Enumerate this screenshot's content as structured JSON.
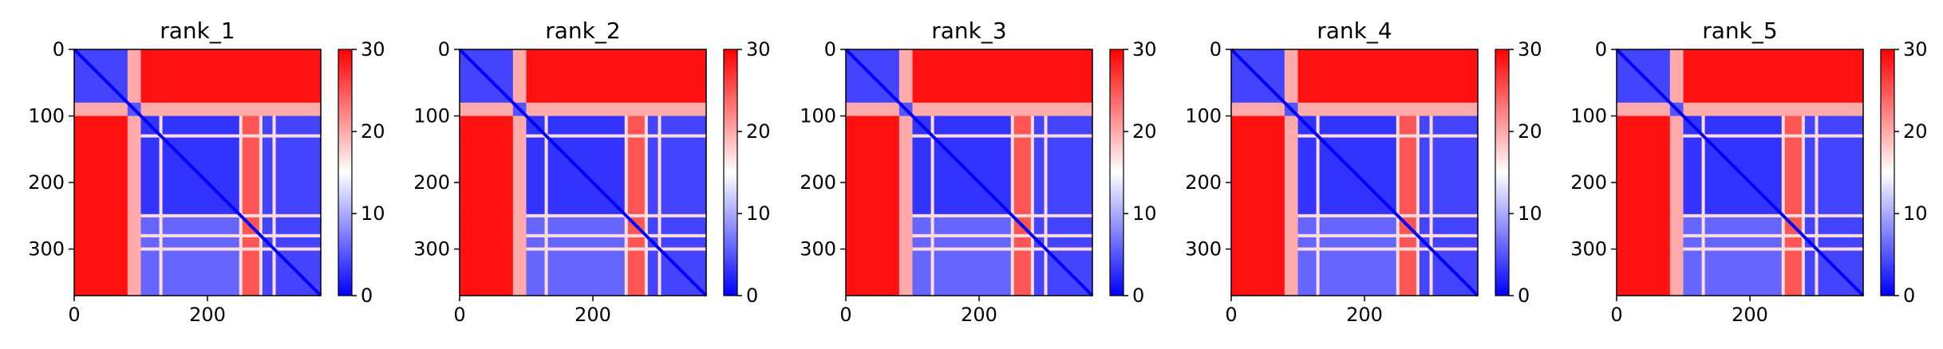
{
  "chart_data": [
    {
      "type": "heatmap",
      "title": "rank_1",
      "xlabel": "",
      "ylabel": "",
      "matrix_size": 370,
      "xlim": [
        0,
        370
      ],
      "ylim": [
        370,
        0
      ],
      "x_ticks": [
        0,
        200
      ],
      "y_ticks": [
        0,
        100,
        200,
        300
      ],
      "colorbar": {
        "cmap": "bwr",
        "range": [
          0,
          30
        ],
        "ticks": [
          0,
          10,
          20,
          30
        ]
      },
      "segments": [
        [
          0,
          20
        ],
        [
          20,
          80
        ],
        [
          80,
          100
        ],
        [
          100,
          130
        ],
        [
          130,
          250
        ],
        [
          250,
          280
        ],
        [
          280,
          300
        ],
        [
          300,
          370
        ]
      ],
      "blocks": [
        {
          "rows": [
            0,
            80
          ],
          "cols": [
            0,
            80
          ],
          "value": 4
        },
        {
          "rows": [
            0,
            80
          ],
          "cols": [
            80,
            370
          ],
          "value": 29
        },
        {
          "rows": [
            100,
            250
          ],
          "cols": [
            100,
            250
          ],
          "value": 3
        },
        {
          "rows": [
            100,
            250
          ],
          "cols": [
            250,
            370
          ],
          "value": 6
        },
        {
          "rows": [
            250,
            280
          ],
          "cols": [
            100,
            370
          ],
          "value": 25
        },
        {
          "rows": [
            280,
            370
          ],
          "cols": [
            100,
            370
          ],
          "value": 4
        },
        {
          "rows": [
            80,
            370
          ],
          "cols": [
            0,
            80
          ],
          "value": 29
        }
      ],
      "diagonal_value": 0
    },
    {
      "type": "heatmap",
      "title": "rank_2",
      "xlabel": "",
      "ylabel": "",
      "matrix_size": 370,
      "xlim": [
        0,
        370
      ],
      "ylim": [
        370,
        0
      ],
      "x_ticks": [
        0,
        200
      ],
      "y_ticks": [
        0,
        100,
        200,
        300
      ],
      "colorbar": {
        "cmap": "bwr",
        "range": [
          0,
          30
        ],
        "ticks": [
          0,
          10,
          20,
          30
        ]
      },
      "segments": [
        [
          0,
          20
        ],
        [
          20,
          80
        ],
        [
          80,
          100
        ],
        [
          100,
          130
        ],
        [
          130,
          250
        ],
        [
          250,
          280
        ],
        [
          280,
          300
        ],
        [
          300,
          370
        ]
      ],
      "blocks": [
        {
          "rows": [
            0,
            80
          ],
          "cols": [
            0,
            80
          ],
          "value": 4
        },
        {
          "rows": [
            0,
            80
          ],
          "cols": [
            80,
            370
          ],
          "value": 29
        },
        {
          "rows": [
            100,
            250
          ],
          "cols": [
            100,
            250
          ],
          "value": 3
        },
        {
          "rows": [
            100,
            250
          ],
          "cols": [
            250,
            370
          ],
          "value": 6
        },
        {
          "rows": [
            250,
            280
          ],
          "cols": [
            100,
            370
          ],
          "value": 25
        },
        {
          "rows": [
            280,
            370
          ],
          "cols": [
            100,
            370
          ],
          "value": 4
        },
        {
          "rows": [
            80,
            370
          ],
          "cols": [
            0,
            80
          ],
          "value": 29
        }
      ],
      "diagonal_value": 0
    },
    {
      "type": "heatmap",
      "title": "rank_3",
      "xlabel": "",
      "ylabel": "",
      "matrix_size": 370,
      "xlim": [
        0,
        370
      ],
      "ylim": [
        370,
        0
      ],
      "x_ticks": [
        0,
        200
      ],
      "y_ticks": [
        0,
        100,
        200,
        300
      ],
      "colorbar": {
        "cmap": "bwr",
        "range": [
          0,
          30
        ],
        "ticks": [
          0,
          10,
          20,
          30
        ]
      },
      "segments": [
        [
          0,
          20
        ],
        [
          20,
          80
        ],
        [
          80,
          100
        ],
        [
          100,
          130
        ],
        [
          130,
          250
        ],
        [
          250,
          280
        ],
        [
          280,
          300
        ],
        [
          300,
          370
        ]
      ],
      "blocks": [
        {
          "rows": [
            0,
            80
          ],
          "cols": [
            0,
            80
          ],
          "value": 4
        },
        {
          "rows": [
            0,
            80
          ],
          "cols": [
            80,
            370
          ],
          "value": 29
        },
        {
          "rows": [
            100,
            250
          ],
          "cols": [
            100,
            250
          ],
          "value": 3
        },
        {
          "rows": [
            100,
            250
          ],
          "cols": [
            250,
            370
          ],
          "value": 6
        },
        {
          "rows": [
            250,
            280
          ],
          "cols": [
            100,
            370
          ],
          "value": 25
        },
        {
          "rows": [
            280,
            370
          ],
          "cols": [
            100,
            370
          ],
          "value": 4
        },
        {
          "rows": [
            80,
            370
          ],
          "cols": [
            0,
            80
          ],
          "value": 29
        }
      ],
      "diagonal_value": 0
    },
    {
      "type": "heatmap",
      "title": "rank_4",
      "xlabel": "",
      "ylabel": "",
      "matrix_size": 370,
      "xlim": [
        0,
        370
      ],
      "ylim": [
        370,
        0
      ],
      "x_ticks": [
        0,
        200
      ],
      "y_ticks": [
        0,
        100,
        200,
        300
      ],
      "colorbar": {
        "cmap": "bwr",
        "range": [
          0,
          30
        ],
        "ticks": [
          0,
          10,
          20,
          30
        ]
      },
      "segments": [
        [
          0,
          20
        ],
        [
          20,
          80
        ],
        [
          80,
          100
        ],
        [
          100,
          130
        ],
        [
          130,
          250
        ],
        [
          250,
          280
        ],
        [
          280,
          300
        ],
        [
          300,
          370
        ]
      ],
      "blocks": [
        {
          "rows": [
            0,
            80
          ],
          "cols": [
            0,
            80
          ],
          "value": 4
        },
        {
          "rows": [
            0,
            80
          ],
          "cols": [
            80,
            370
          ],
          "value": 29
        },
        {
          "rows": [
            100,
            250
          ],
          "cols": [
            100,
            250
          ],
          "value": 3
        },
        {
          "rows": [
            100,
            250
          ],
          "cols": [
            250,
            370
          ],
          "value": 6
        },
        {
          "rows": [
            250,
            280
          ],
          "cols": [
            100,
            370
          ],
          "value": 25
        },
        {
          "rows": [
            280,
            370
          ],
          "cols": [
            100,
            370
          ],
          "value": 4
        },
        {
          "rows": [
            80,
            370
          ],
          "cols": [
            0,
            80
          ],
          "value": 29
        }
      ],
      "diagonal_value": 0
    },
    {
      "type": "heatmap",
      "title": "rank_5",
      "xlabel": "",
      "ylabel": "",
      "matrix_size": 370,
      "xlim": [
        0,
        370
      ],
      "ylim": [
        370,
        0
      ],
      "x_ticks": [
        0,
        200
      ],
      "y_ticks": [
        0,
        100,
        200,
        300
      ],
      "colorbar": {
        "cmap": "bwr",
        "range": [
          0,
          30
        ],
        "ticks": [
          0,
          10,
          20,
          30
        ]
      },
      "segments": [
        [
          0,
          20
        ],
        [
          20,
          80
        ],
        [
          80,
          100
        ],
        [
          100,
          130
        ],
        [
          130,
          250
        ],
        [
          250,
          280
        ],
        [
          280,
          300
        ],
        [
          300,
          370
        ]
      ],
      "blocks": [
        {
          "rows": [
            0,
            80
          ],
          "cols": [
            0,
            80
          ],
          "value": 4
        },
        {
          "rows": [
            0,
            80
          ],
          "cols": [
            80,
            370
          ],
          "value": 29
        },
        {
          "rows": [
            100,
            250
          ],
          "cols": [
            100,
            250
          ],
          "value": 3
        },
        {
          "rows": [
            100,
            250
          ],
          "cols": [
            250,
            370
          ],
          "value": 6
        },
        {
          "rows": [
            250,
            280
          ],
          "cols": [
            100,
            370
          ],
          "value": 25
        },
        {
          "rows": [
            280,
            370
          ],
          "cols": [
            100,
            370
          ],
          "value": 4
        },
        {
          "rows": [
            80,
            370
          ],
          "cols": [
            0,
            80
          ],
          "value": 29
        }
      ],
      "diagonal_value": 0
    }
  ],
  "colors": {
    "low": "#0000ff",
    "mid": "#ffffff",
    "high": "#ff0000",
    "axis": "#000000"
  }
}
